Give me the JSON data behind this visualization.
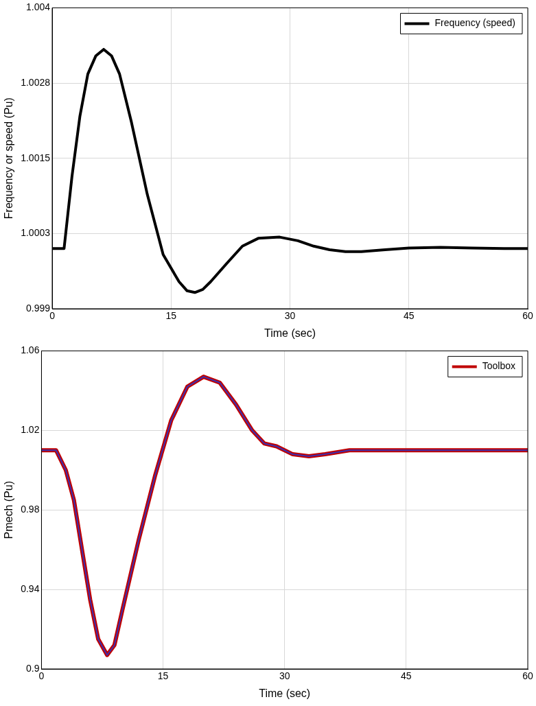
{
  "chart_data": [
    {
      "type": "line",
      "xlabel": "Time (sec)",
      "ylabel": "Frequency or speed (Pu)",
      "xlim": [
        0,
        60
      ],
      "xticks": [
        0,
        15,
        30,
        45,
        60
      ],
      "ylim": [
        0.999,
        1.004
      ],
      "yticks": [
        0.999,
        {
          "value": 1.00025,
          "label": "1.0003"
        },
        1.0015,
        {
          "value": 1.00275,
          "label": "1.0028"
        },
        1.004
      ],
      "grid": true,
      "legend": "top right",
      "marker": "none",
      "line_style": "solid",
      "series": [
        {
          "name": "Frequency (speed)",
          "color": "#000000",
          "x": [
            0,
            1.5,
            2.5,
            3.5,
            4.5,
            5.5,
            6.5,
            7.5,
            8.5,
            10,
            12,
            14,
            16,
            17,
            18,
            19,
            20,
            22,
            24,
            26,
            28.7,
            31,
            33,
            35,
            37,
            39,
            42,
            45,
            49,
            53,
            57,
            60
          ],
          "values": [
            1.0,
            1.0,
            1.0012,
            1.0022,
            1.0029,
            1.0032,
            1.00331,
            1.0032,
            1.0029,
            1.0021,
            1.0009,
            0.9999,
            0.99945,
            0.9993,
            0.99927,
            0.99932,
            0.99945,
            0.99975,
            1.00004,
            1.00017,
            1.00019,
            1.00013,
            1.00004,
            0.99998,
            0.99995,
            0.99995,
            0.99998,
            1.00001,
            1.00002,
            1.00001,
            1.0,
            1.0
          ]
        }
      ]
    },
    {
      "type": "line",
      "xlabel": "Time (sec)",
      "ylabel": "Pmech (Pu)",
      "xlim": [
        0,
        60
      ],
      "xticks": [
        0,
        15,
        30,
        45,
        60
      ],
      "ylim": [
        0.9,
        1.06
      ],
      "yticks": [
        0.9,
        0.94,
        0.98,
        1.02,
        1.06
      ],
      "grid": true,
      "legend": "top right",
      "marker": "none",
      "line_style": "solid",
      "series": [
        {
          "name": "Toolbox",
          "color": "#c00000",
          "x": [
            0,
            1.8,
            3,
            4,
            5,
            6,
            7,
            8.1,
            9,
            10,
            12,
            14,
            16,
            18,
            20,
            22,
            24,
            26,
            27.5,
            29,
            31,
            33,
            35,
            38,
            45,
            60
          ],
          "values": [
            1.01,
            1.01,
            1.0,
            0.985,
            0.96,
            0.935,
            0.915,
            0.907,
            0.912,
            0.93,
            0.965,
            0.997,
            1.025,
            1.042,
            1.047,
            1.044,
            1.033,
            1.02,
            1.0134,
            1.012,
            1.008,
            1.007,
            1.008,
            1.01,
            1.01,
            1.01
          ]
        },
        {
          "color": "#3b30b0",
          "x": [
            0,
            1.8,
            3,
            4,
            5,
            6,
            7,
            8.1,
            9,
            10,
            12,
            14,
            16,
            18,
            20,
            22,
            24,
            26,
            27.5,
            29,
            31,
            33,
            35,
            38,
            45,
            60
          ],
          "values": [
            1.01,
            1.01,
            1.0,
            0.985,
            0.96,
            0.935,
            0.915,
            0.907,
            0.912,
            0.93,
            0.965,
            0.997,
            1.025,
            1.042,
            1.047,
            1.044,
            1.033,
            1.02,
            1.0134,
            1.012,
            1.008,
            1.007,
            1.008,
            1.01,
            1.01,
            1.01
          ]
        }
      ]
    }
  ]
}
